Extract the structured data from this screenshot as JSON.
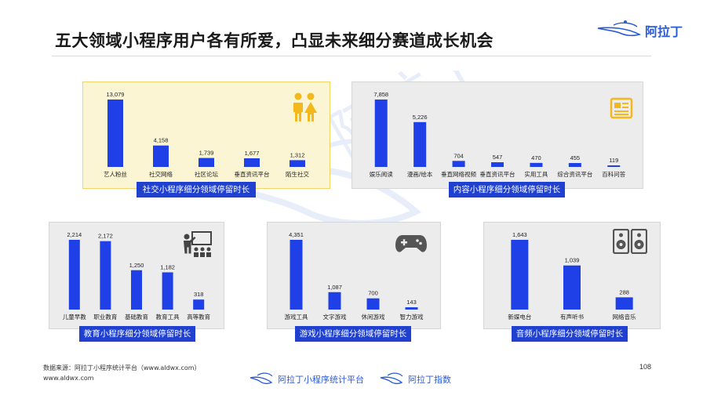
{
  "header": {
    "title": "五大领域小程序用户各有所爱，凸显未来细分赛道成长机会",
    "logo_text": "阿拉丁"
  },
  "colors": {
    "bar": "#1e40e6",
    "caption_bg": "#2040d0",
    "yellow_panel": "#fbf5d4",
    "grey_panel": "#ececec",
    "accent_yellow": "#f2b81c",
    "icon_grey": "#555555"
  },
  "chart_data": [
    {
      "type": "bar",
      "caption": "社交小程序细分领域停留时长",
      "icon": "people-icon",
      "categories": [
        "艺人粉丝",
        "社交网络",
        "社区论坛",
        "垂直资讯平台",
        "陌生社交"
      ],
      "value_labels": [
        "13,079",
        "4,158",
        "1,739",
        "1,677",
        "1,312"
      ],
      "values": [
        13079,
        4158,
        1739,
        1677,
        1312
      ]
    },
    {
      "type": "bar",
      "caption": "内容小程序细分领域停留时长",
      "icon": "newspaper-icon",
      "categories": [
        "娱乐阅读",
        "漫画/绘本",
        "垂直网络视频",
        "垂直资讯平台",
        "实用工具",
        "综合资讯平台",
        "百科问答"
      ],
      "value_labels": [
        "7,858",
        "5,226",
        "704",
        "547",
        "470",
        "455",
        "119"
      ],
      "values": [
        7858,
        5226,
        704,
        547,
        470,
        455,
        119
      ]
    },
    {
      "type": "bar",
      "caption": "教育小程序细分领域停留时长",
      "icon": "teacher-icon",
      "categories": [
        "儿童早教",
        "职业教育",
        "基础教育",
        "教育工具",
        "高等教育"
      ],
      "value_labels": [
        "2,214",
        "2,172",
        "1,250",
        "1,182",
        "318"
      ],
      "values": [
        2214,
        2172,
        1250,
        1182,
        318
      ]
    },
    {
      "type": "bar",
      "caption": "游戏小程序细分领域停留时长",
      "icon": "gamepad-icon",
      "categories": [
        "游戏工具",
        "文字游戏",
        "休闲游戏",
        "智力游戏"
      ],
      "value_labels": [
        "4,351",
        "1,087",
        "700",
        "143"
      ],
      "values": [
        4351,
        1087,
        700,
        143
      ]
    },
    {
      "type": "bar",
      "caption": "音频小程序细分领域停留时长",
      "icon": "speaker-icon",
      "categories": [
        "新媒电台",
        "有声听书",
        "网络音乐"
      ],
      "value_labels": [
        "1,643",
        "1,039",
        "288"
      ],
      "values": [
        1643,
        1039,
        288
      ]
    }
  ],
  "footer": {
    "source_line1": "数据来源：阿拉丁小程序统计平台（www.aldwx.com）",
    "source_line2": "www.aldwx.com",
    "page_number": "108",
    "brand1": "阿拉丁小程序统计平台",
    "brand2": "阿拉丁指数"
  }
}
